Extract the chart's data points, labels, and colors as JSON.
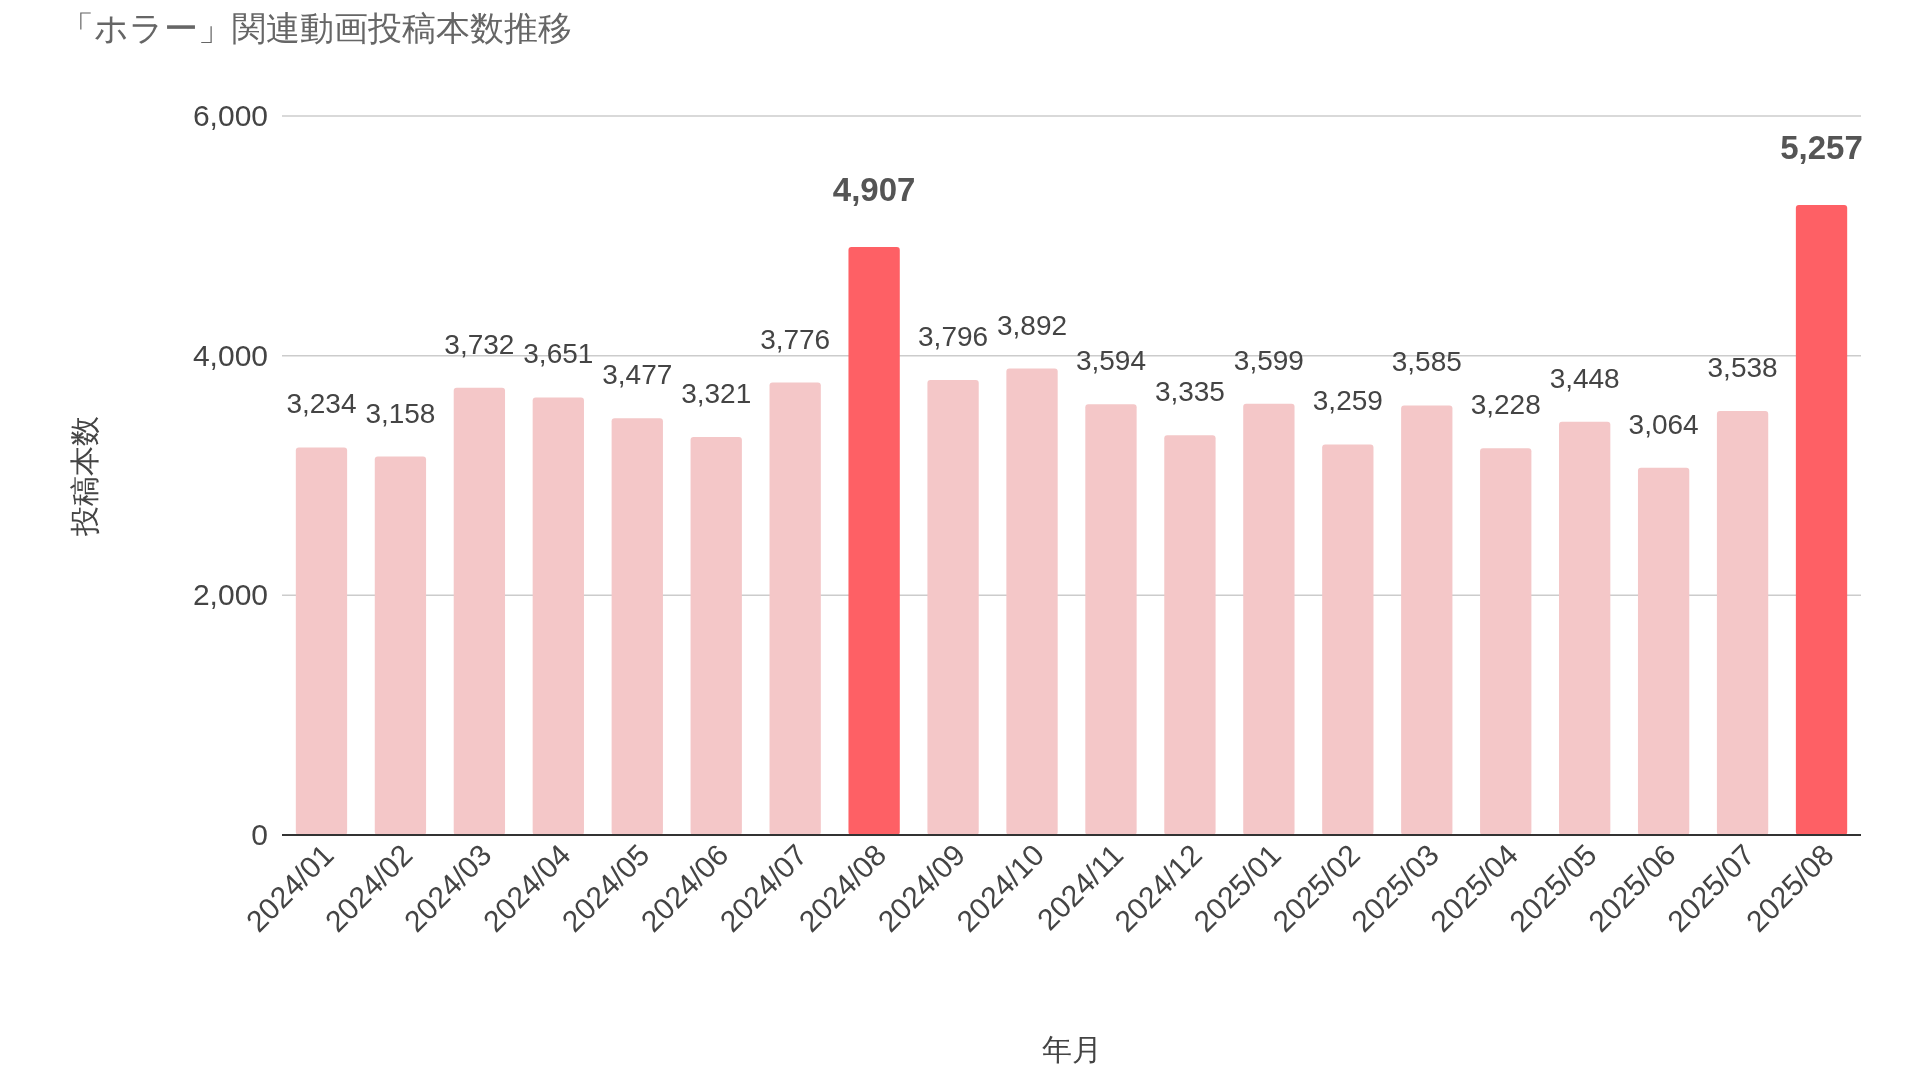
{
  "chart_data": {
    "type": "bar",
    "title": "「ホラー」関連動画投稿本数推移",
    "xlabel": "年月",
    "ylabel": "投稿本数",
    "categories": [
      "2024/01",
      "2024/02",
      "2024/03",
      "2024/04",
      "2024/05",
      "2024/06",
      "2024/07",
      "2024/08",
      "2024/09",
      "2024/10",
      "2024/11",
      "2024/12",
      "2025/01",
      "2025/02",
      "2025/03",
      "2025/04",
      "2025/05",
      "2025/06",
      "2025/07",
      "2025/08"
    ],
    "values": [
      3234,
      3158,
      3732,
      3651,
      3477,
      3321,
      3776,
      4907,
      3796,
      3892,
      3594,
      3335,
      3599,
      3259,
      3585,
      3228,
      3448,
      3064,
      3538,
      5257
    ],
    "value_labels": [
      "3,234",
      "3,158",
      "3,732",
      "3,651",
      "3,477",
      "3,321",
      "3,776",
      "4,907",
      "3,796",
      "3,892",
      "3,594",
      "3,335",
      "3,599",
      "3,259",
      "3,585",
      "3,228",
      "3,448",
      "3,064",
      "3,538",
      "5,257"
    ],
    "colors": [
      "#f4c7c8",
      "#f4c7c8",
      "#f4c7c8",
      "#f4c7c8",
      "#f4c7c8",
      "#f4c7c8",
      "#f4c7c8",
      "#fe6065",
      "#f4c7c8",
      "#f4c7c8",
      "#f4c7c8",
      "#f4c7c8",
      "#f4c7c8",
      "#f4c7c8",
      "#f4c7c8",
      "#f4c7c8",
      "#f4c7c8",
      "#f4c7c8",
      "#f4c7c8",
      "#fe6065"
    ],
    "ylim": [
      0,
      6000
    ],
    "yticks": [
      {
        "value": 0,
        "label": "0"
      },
      {
        "value": 2000,
        "label": "2,000"
      },
      {
        "value": 4000,
        "label": "4,000"
      },
      {
        "value": 6000,
        "label": "6,000"
      }
    ],
    "grid": "y"
  }
}
